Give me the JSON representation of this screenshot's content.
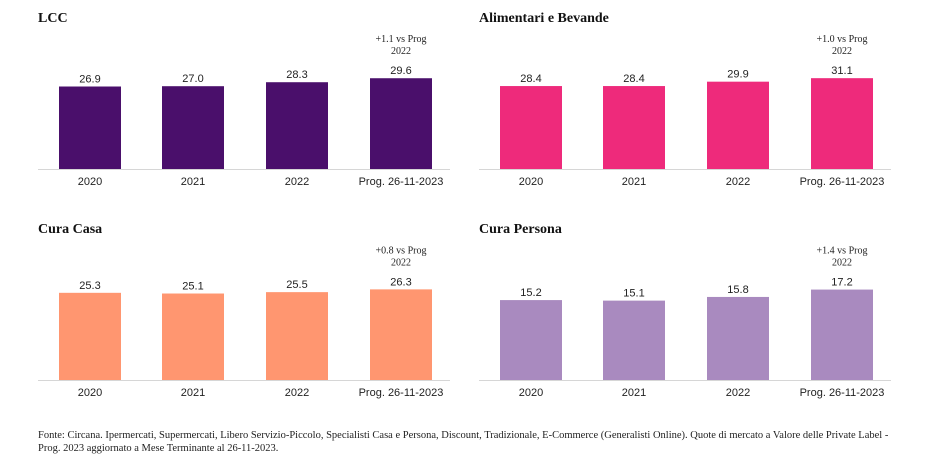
{
  "chart_data": [
    {
      "type": "bar",
      "title": "LCC",
      "categories": [
        "2020",
        "2021",
        "2022",
        "Prog. 26-11-2023"
      ],
      "values": [
        26.9,
        27.0,
        28.3,
        29.6
      ],
      "data_labels": [
        "26.9",
        "27.0",
        "28.3",
        "29.6"
      ],
      "annotation": [
        "+1.1 vs Prog",
        "2022"
      ],
      "color": "#4A0F6B",
      "ylim": [
        0,
        30
      ],
      "xlabel": "",
      "ylabel": "",
      "grid": false
    },
    {
      "type": "bar",
      "title": "Alimentari e Bevande",
      "categories": [
        "2020",
        "2021",
        "2022",
        "Prog. 26-11-2023"
      ],
      "values": [
        28.4,
        28.4,
        29.9,
        31.1
      ],
      "data_labels": [
        "28.4",
        "28.4",
        "29.9",
        "31.1"
      ],
      "annotation": [
        "+1.0 vs Prog",
        "2022"
      ],
      "color": "#EE2A7B",
      "ylim": [
        0,
        31.5
      ],
      "xlabel": "",
      "ylabel": "",
      "grid": false
    },
    {
      "type": "bar",
      "title": "Cura Casa",
      "categories": [
        "2020",
        "2021",
        "2022",
        "Prog. 26-11-2023"
      ],
      "values": [
        25.3,
        25.1,
        25.5,
        26.3
      ],
      "data_labels": [
        "25.3",
        "25.1",
        "25.5",
        "26.3"
      ],
      "annotation": [
        "+0.8 vs Prog",
        "2022"
      ],
      "color": "#FF9670",
      "ylim": [
        0,
        26.7
      ],
      "xlabel": "",
      "ylabel": "",
      "grid": false
    },
    {
      "type": "bar",
      "title": "Cura Persona",
      "categories": [
        "2020",
        "2021",
        "2022",
        "Prog. 26-11-2023"
      ],
      "values": [
        15.2,
        15.1,
        15.8,
        17.2
      ],
      "data_labels": [
        "15.2",
        "15.1",
        "15.8",
        "17.2"
      ],
      "annotation": [
        "+1.4 vs Prog",
        "2022"
      ],
      "color": "#A98ABF",
      "ylim": [
        0,
        17.5
      ],
      "xlabel": "",
      "ylabel": "",
      "grid": false
    }
  ],
  "footnote": "Fonte: Circana. Ipermercati, Supermercati, Libero Servizio-Piccolo, Specialisti Casa e Persona, Discount, Tradizionale, E-Commerce (Generalisti Online). Quote di mercato a Valore delle Private Label - Prog. 2023 aggiornato a Mese Terminante al 26-11-2023."
}
